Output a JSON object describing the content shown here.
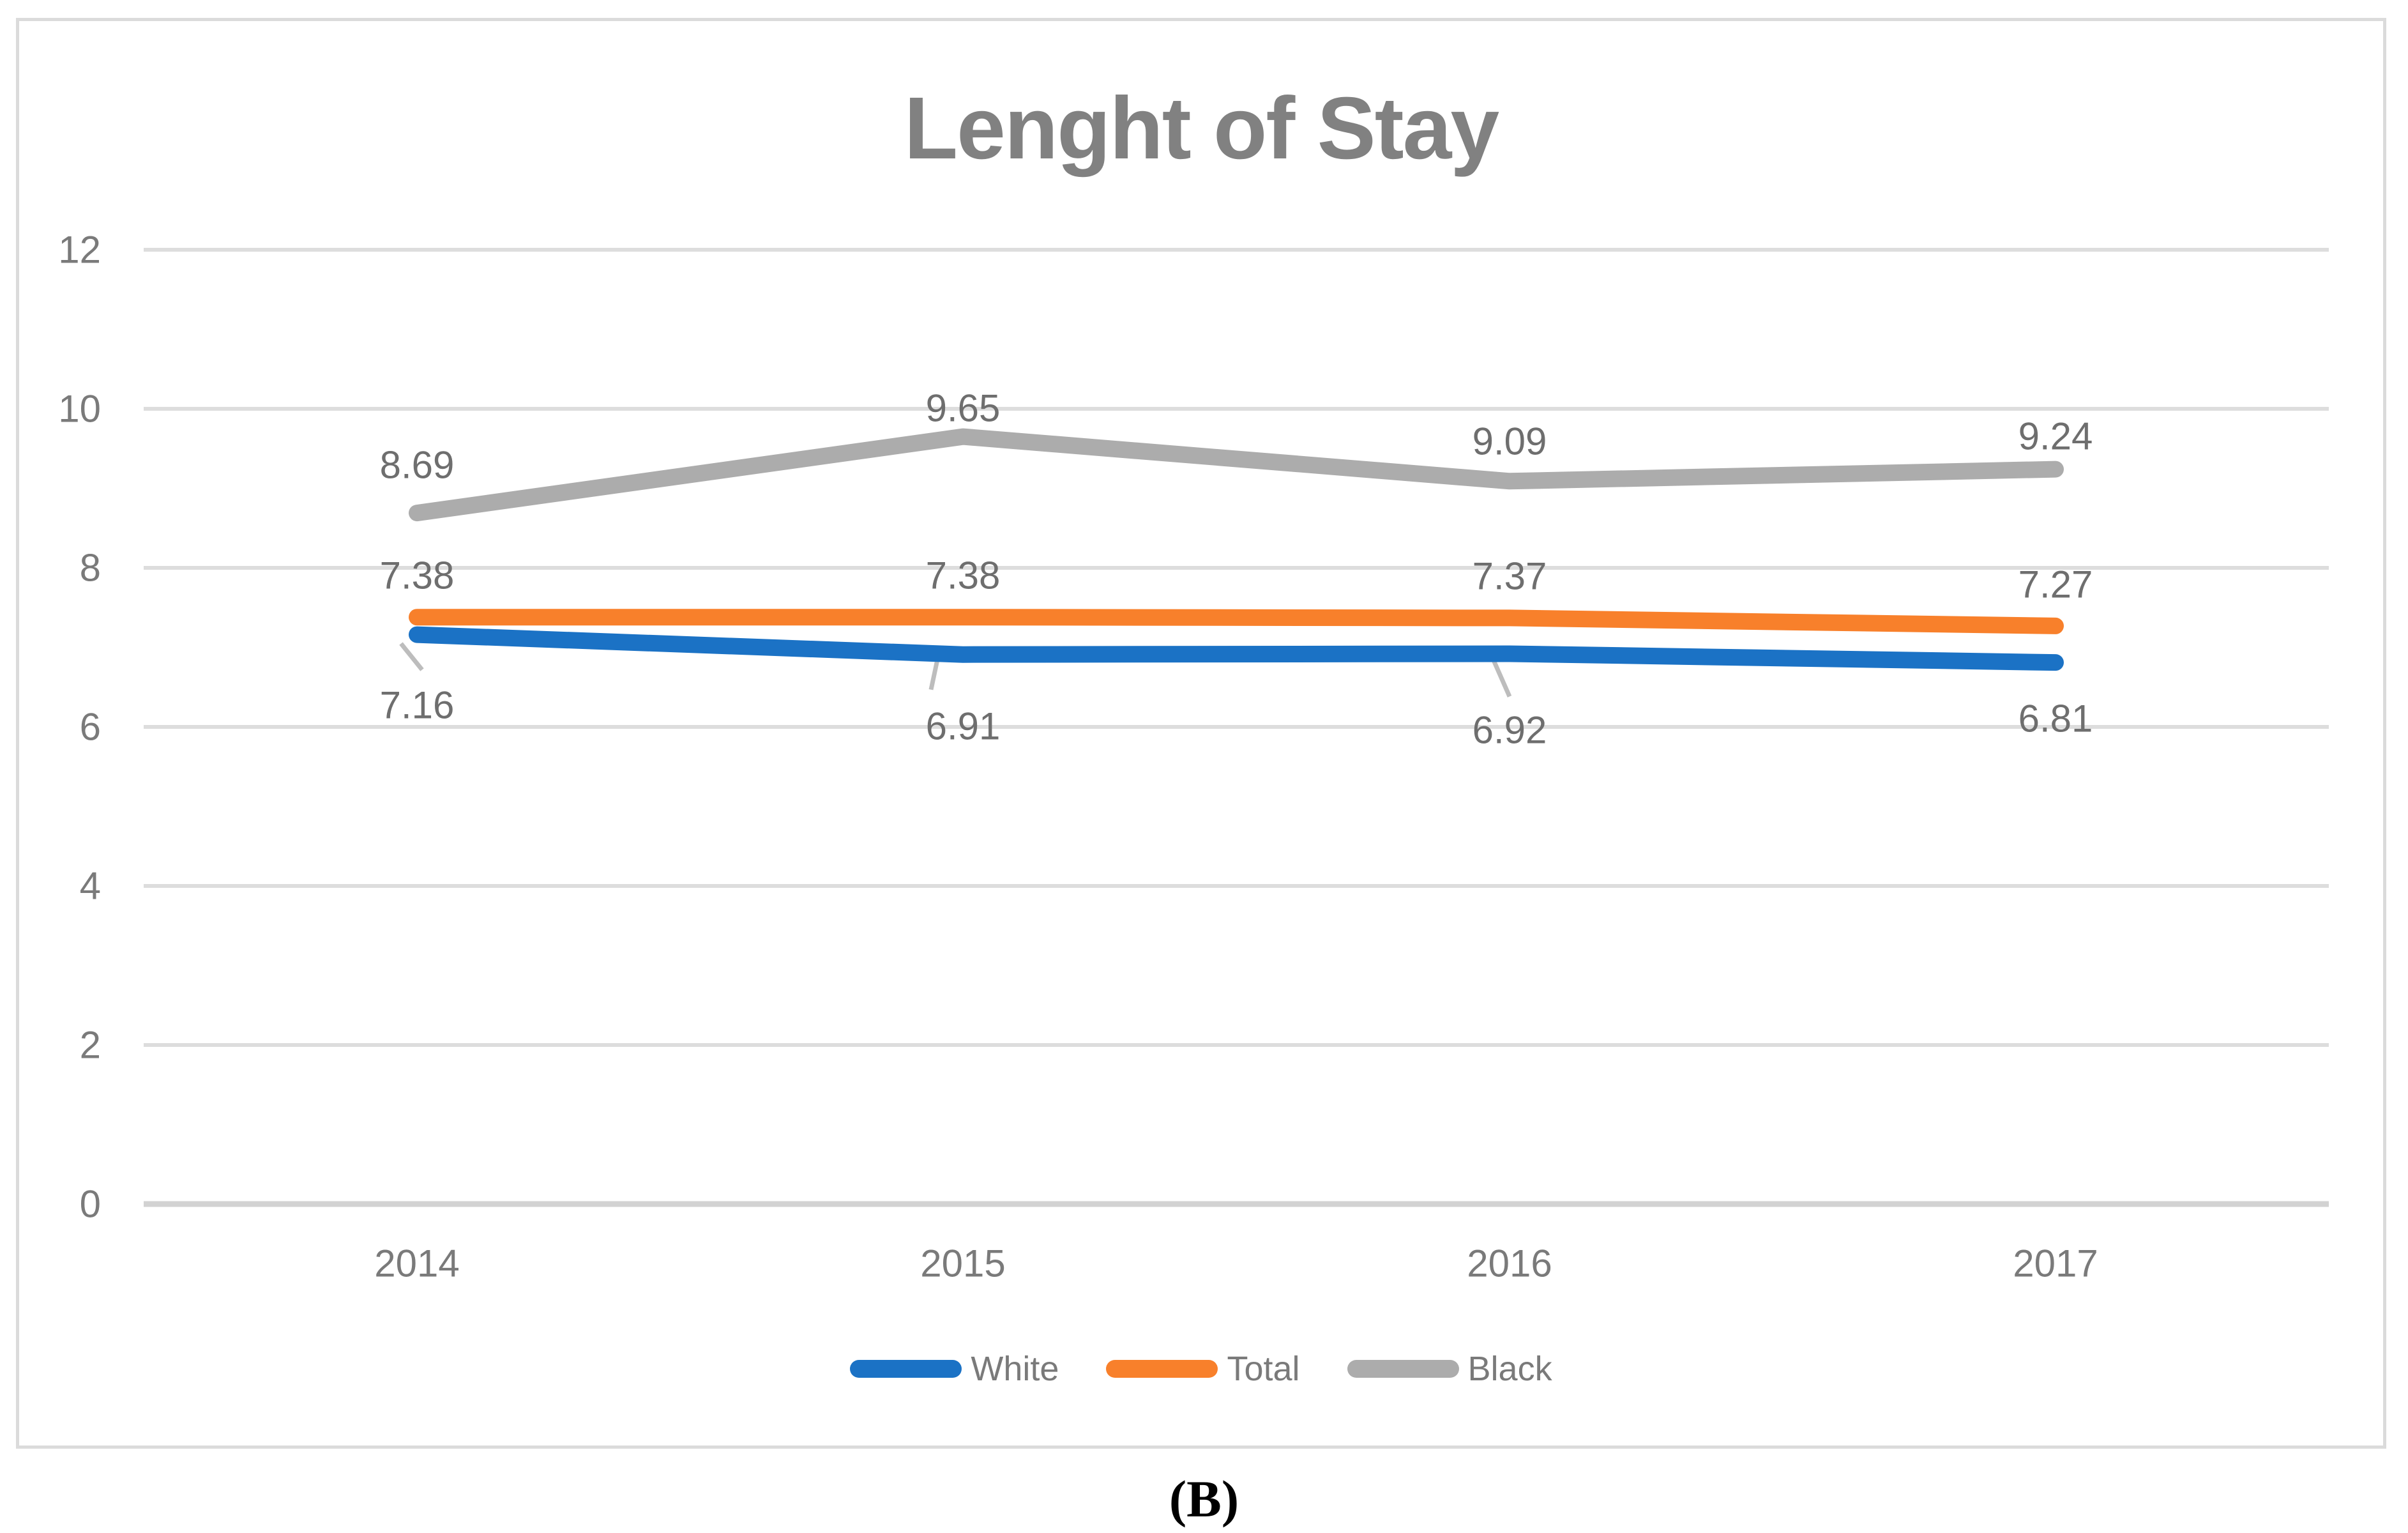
{
  "figure": {
    "title": "Lenght of Stay",
    "caption": "(B)"
  },
  "chart_data": {
    "type": "line",
    "title": "Lenght of Stay",
    "categories": [
      "2014",
      "2015",
      "2016",
      "2017"
    ],
    "series": [
      {
        "name": "White",
        "color": "#1B72C5",
        "values": [
          7.16,
          6.91,
          6.92,
          6.81
        ]
      },
      {
        "name": "Total",
        "color": "#F8802B",
        "values": [
          7.38,
          7.38,
          7.37,
          7.27
        ]
      },
      {
        "name": "Black",
        "color": "#ACACAC",
        "values": [
          8.69,
          9.65,
          9.09,
          9.24
        ]
      }
    ],
    "ylim": [
      0,
      12
    ],
    "yticks": [
      0,
      2,
      4,
      6,
      8,
      10,
      12
    ],
    "xlabel": "",
    "ylabel": "",
    "grid": "horizontal",
    "legend_position": "bottom",
    "data_labels": true
  },
  "colors": {
    "white_series": "#1B72C5",
    "total_series": "#F8802B",
    "black_series": "#ACACAC",
    "gridline": "#DDDDDD",
    "axis_line": "#D2D2D2",
    "leader_line": "#BDBDBD",
    "data_label_text": "#6E6E6E",
    "tick_label_text": "#7A7A7A",
    "title_text": "#818181",
    "frame_border": "#DBDBDB",
    "caption_text": "#000000"
  }
}
